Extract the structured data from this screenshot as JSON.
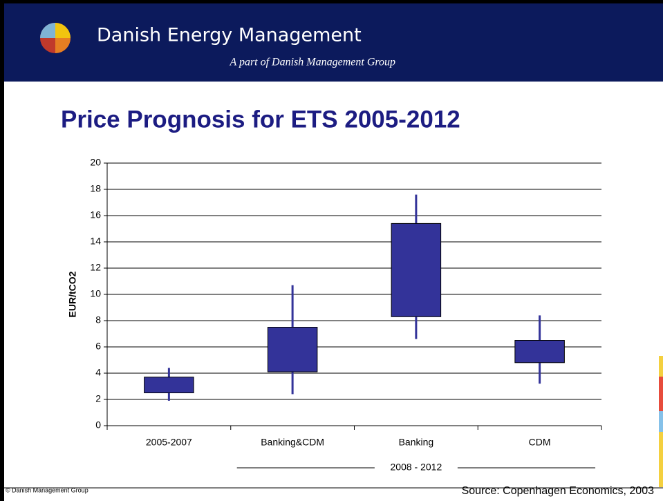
{
  "header": {
    "title": "Danish Energy Management",
    "subtitle": "A part of Danish Management Group"
  },
  "chart_data": {
    "type": "box",
    "title": "Price Prognosis for ETS 2005-2012",
    "y_label": "EUR/tCO2",
    "categories": [
      "2005-2007",
      "Banking&CDM",
      "Banking",
      "CDM"
    ],
    "low": [
      1.9,
      2.4,
      6.6,
      3.2
    ],
    "box_low": [
      2.5,
      4.1,
      8.3,
      4.8
    ],
    "box_high": [
      3.7,
      7.5,
      15.4,
      6.5
    ],
    "high": [
      4.4,
      10.7,
      17.6,
      8.4
    ],
    "color": "#333399",
    "ylim": [
      0,
      20
    ],
    "yticks": [
      0,
      2,
      4,
      6,
      8,
      10,
      12,
      14,
      16,
      18,
      20
    ],
    "grid": true,
    "group_label": "2008 - 2012",
    "source": "Source: Copenhagen Economics, 2003"
  },
  "footer": {
    "copyright": "© Danish Management Group"
  }
}
